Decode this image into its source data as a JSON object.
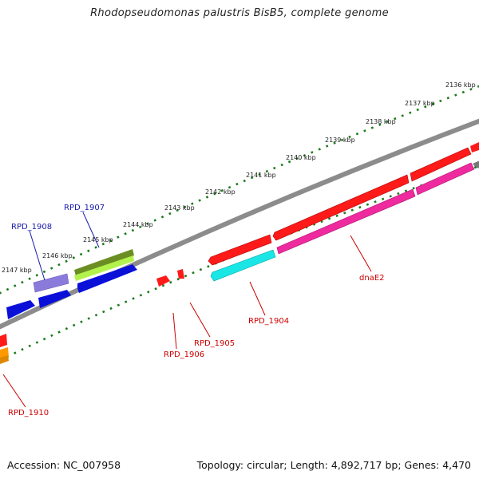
{
  "title": "Rhodopseudomonas palustris BisB5, complete genome",
  "accession_text": "Accession: NC_007958",
  "summary_text": "Topology: circular; Length: 4,892,717 bp; Genes: 4,470",
  "colors": {
    "backbone": "#808080",
    "tick": "#1a7a1a",
    "label_red": "#cc0000",
    "label_blue": "#1a1aaa"
  },
  "scale_labels": [
    "2136 kbp",
    "2137 kbp",
    "2138 kbp",
    "2139 kbp",
    "2140 kbp",
    "2141 kbp",
    "2142 kbp",
    "2143 kbp",
    "2144 kbp",
    "2145 kbp",
    "2146 kbp",
    "2147 kbp"
  ],
  "gene_labels": [
    "RPD_1907",
    "RPD_1908",
    "dnaE2",
    "RPD_1904",
    "RPD_1905",
    "RPD_1906",
    "RPD_1910"
  ]
}
